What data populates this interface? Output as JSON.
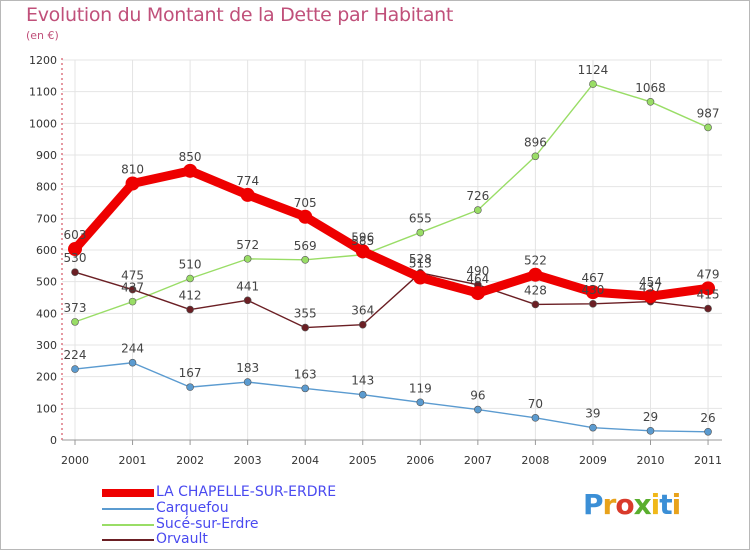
{
  "title": "Evolution du Montant de la Dette par Habitant",
  "subtitle": "(en €)",
  "logo_letters": [
    "P",
    "r",
    "o",
    "x",
    "i",
    "t",
    "i"
  ],
  "logo_colors": [
    "#3b8fd6",
    "#e8a21b",
    "#d93a2b",
    "#5aae2e",
    "#f0b81a",
    "#3b8fd6",
    "#e8a21b"
  ],
  "chart_data": {
    "type": "line",
    "x": [
      "2000",
      "2001",
      "2002",
      "2003",
      "2004",
      "2005",
      "2006",
      "2007",
      "2008",
      "2009",
      "2010",
      "2011"
    ],
    "ylim": [
      0,
      1200
    ],
    "yticks": [
      "0",
      "100",
      "200",
      "300",
      "400",
      "500",
      "600",
      "700",
      "800",
      "900",
      "1000",
      "1100",
      "1200"
    ],
    "grid": true,
    "legend": "bottom-left",
    "series": [
      {
        "name": "Sucé-sur-Erdre",
        "color": "#99dd66",
        "values": [
          373,
          437,
          510,
          572,
          569,
          585,
          655,
          726,
          896,
          1124,
          1068,
          987
        ]
      },
      {
        "name": "Orvault",
        "color": "#6b1f24",
        "values": [
          530,
          475,
          412,
          441,
          355,
          364,
          528,
          490,
          428,
          430,
          437,
          415
        ]
      },
      {
        "name": "Carquefou",
        "color": "#5b9bd0",
        "values": [
          224,
          244,
          167,
          183,
          163,
          143,
          119,
          96,
          70,
          39,
          29,
          26
        ]
      },
      {
        "name": "LA CHAPELLE-SUR-ERDRE",
        "color": "#ee0000",
        "values": [
          603,
          810,
          850,
          774,
          705,
          596,
          513,
          464,
          522,
          467,
          454,
          479
        ]
      }
    ],
    "data_labels": {
      "Sucé-sur-Erdre": [
        "373",
        "437",
        "510",
        "572",
        "569",
        "585",
        "655",
        "726",
        "896",
        "1124",
        "1068",
        "987"
      ],
      "Orvault": [
        "530",
        "475",
        "412",
        "441",
        "355",
        "364",
        "528",
        "490",
        "428",
        "430",
        "437",
        "415"
      ],
      "Carquefou": [
        "224",
        "244",
        "167",
        "183",
        "163",
        "143",
        "119",
        "96",
        "70",
        "39",
        "29",
        "26"
      ],
      "LA CHAPELLE-SUR-ERDRE": [
        "603",
        "810",
        "850",
        "774",
        "705",
        "596",
        "513",
        "464",
        "522",
        "467",
        "454",
        "479"
      ]
    }
  },
  "legend_order": [
    "LA CHAPELLE-SUR-ERDRE",
    "Carquefou",
    "Sucé-sur-Erdre",
    "Orvault"
  ]
}
